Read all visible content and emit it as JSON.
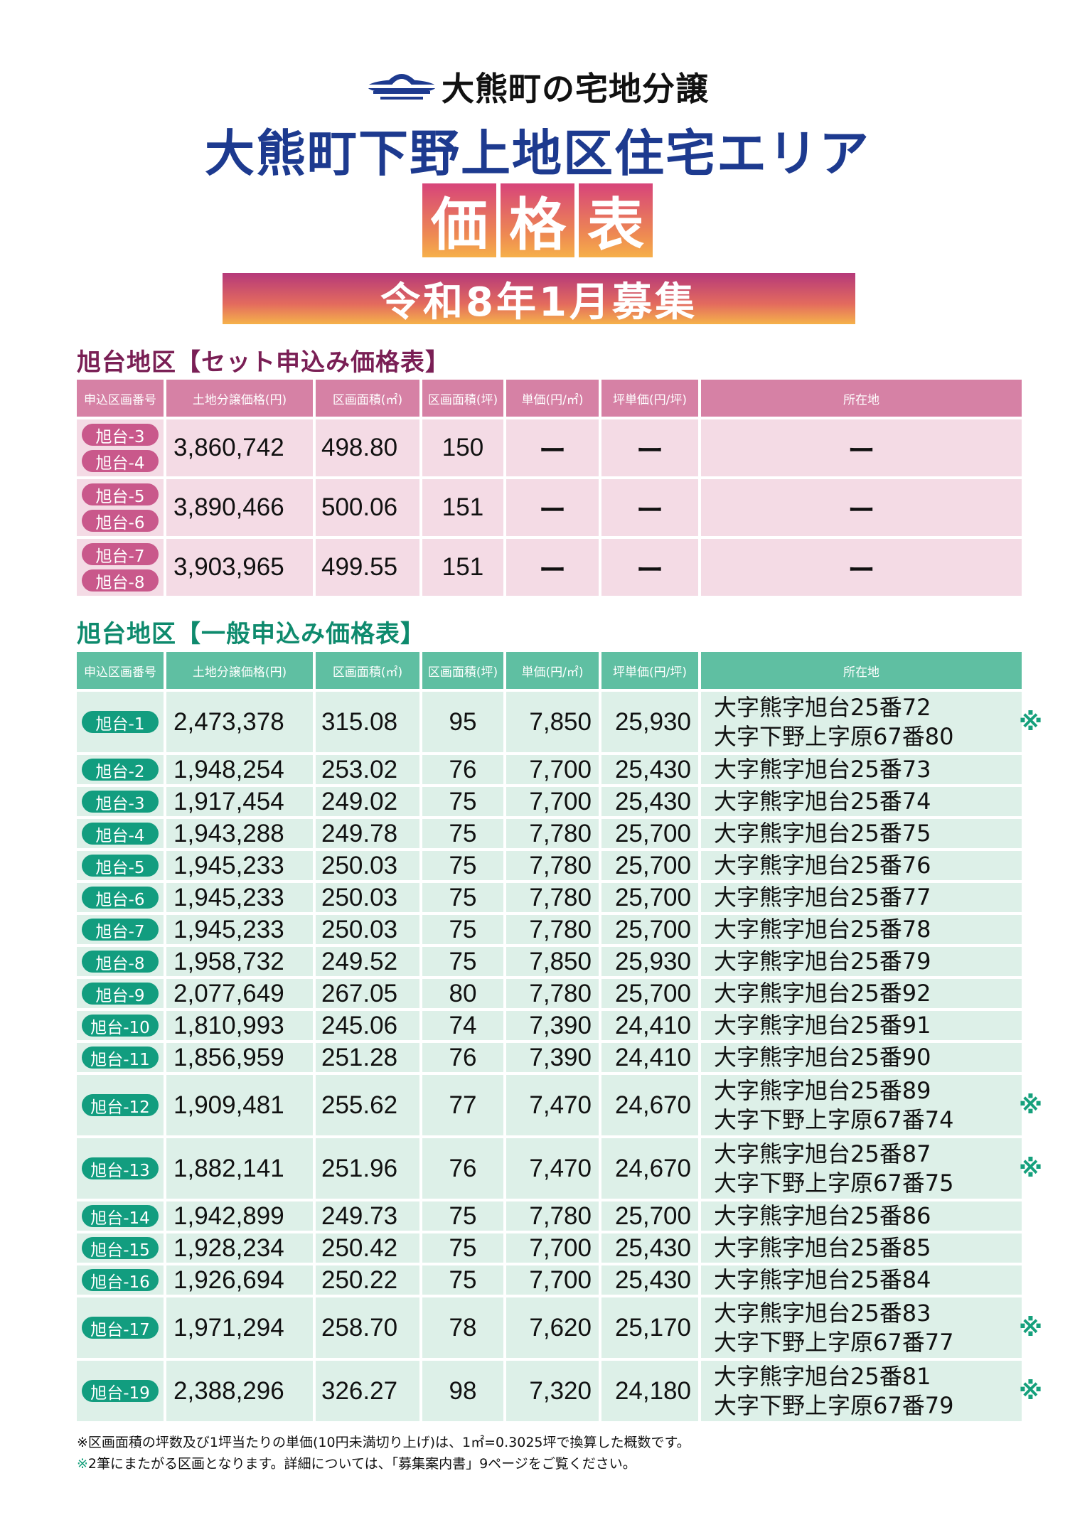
{
  "header": {
    "brand": "大熊町の宅地分譲",
    "main_title": "大熊町下野上地区住宅エリア",
    "price_table_chars": [
      "価",
      "格",
      "表"
    ],
    "period_banner": "令和8年1月募集",
    "colors": {
      "navy": "#1d3a8f",
      "pink": "#d7447a",
      "orange": "#f6b04a",
      "teal": "#129d7f"
    }
  },
  "columns": [
    "申込区画番号",
    "土地分譲価格(円)",
    "区画面積(㎡)",
    "区画面積(坪)",
    "単価(円/㎡)",
    "坪単価(円/坪)",
    "所在地"
  ],
  "set_section": {
    "title": "旭台地区【セット申込み価格表】",
    "rows": [
      {
        "ids": [
          "旭台-3",
          "旭台-4"
        ],
        "price": "3,860,742",
        "area_m2": "498.80",
        "area_tsubo": "150",
        "unit_m2": "ー",
        "unit_tsubo": "ー",
        "location": "ー"
      },
      {
        "ids": [
          "旭台-5",
          "旭台-6"
        ],
        "price": "3,890,466",
        "area_m2": "500.06",
        "area_tsubo": "151",
        "unit_m2": "ー",
        "unit_tsubo": "ー",
        "location": "ー"
      },
      {
        "ids": [
          "旭台-7",
          "旭台-8"
        ],
        "price": "3,903,965",
        "area_m2": "499.55",
        "area_tsubo": "151",
        "unit_m2": "ー",
        "unit_tsubo": "ー",
        "location": "ー"
      }
    ]
  },
  "general_section": {
    "title": "旭台地区【一般申込み価格表】",
    "rows": [
      {
        "id": "旭台-1",
        "price": "2,473,378",
        "area_m2": "315.08",
        "area_tsubo": "95",
        "unit_m2": "7,850",
        "unit_tsubo": "25,930",
        "loc1": "大字熊字旭台25番72",
        "loc2": "大字下野上字原67番80",
        "mark": "※"
      },
      {
        "id": "旭台-2",
        "price": "1,948,254",
        "area_m2": "253.02",
        "area_tsubo": "76",
        "unit_m2": "7,700",
        "unit_tsubo": "25,430",
        "loc1": "大字熊字旭台25番73"
      },
      {
        "id": "旭台-3",
        "price": "1,917,454",
        "area_m2": "249.02",
        "area_tsubo": "75",
        "unit_m2": "7,700",
        "unit_tsubo": "25,430",
        "loc1": "大字熊字旭台25番74"
      },
      {
        "id": "旭台-4",
        "price": "1,943,288",
        "area_m2": "249.78",
        "area_tsubo": "75",
        "unit_m2": "7,780",
        "unit_tsubo": "25,700",
        "loc1": "大字熊字旭台25番75"
      },
      {
        "id": "旭台-5",
        "price": "1,945,233",
        "area_m2": "250.03",
        "area_tsubo": "75",
        "unit_m2": "7,780",
        "unit_tsubo": "25,700",
        "loc1": "大字熊字旭台25番76"
      },
      {
        "id": "旭台-6",
        "price": "1,945,233",
        "area_m2": "250.03",
        "area_tsubo": "75",
        "unit_m2": "7,780",
        "unit_tsubo": "25,700",
        "loc1": "大字熊字旭台25番77"
      },
      {
        "id": "旭台-7",
        "price": "1,945,233",
        "area_m2": "250.03",
        "area_tsubo": "75",
        "unit_m2": "7,780",
        "unit_tsubo": "25,700",
        "loc1": "大字熊字旭台25番78"
      },
      {
        "id": "旭台-8",
        "price": "1,958,732",
        "area_m2": "249.52",
        "area_tsubo": "75",
        "unit_m2": "7,850",
        "unit_tsubo": "25,930",
        "loc1": "大字熊字旭台25番79"
      },
      {
        "id": "旭台-9",
        "price": "2,077,649",
        "area_m2": "267.05",
        "area_tsubo": "80",
        "unit_m2": "7,780",
        "unit_tsubo": "25,700",
        "loc1": "大字熊字旭台25番92"
      },
      {
        "id": "旭台-10",
        "price": "1,810,993",
        "area_m2": "245.06",
        "area_tsubo": "74",
        "unit_m2": "7,390",
        "unit_tsubo": "24,410",
        "loc1": "大字熊字旭台25番91"
      },
      {
        "id": "旭台-11",
        "price": "1,856,959",
        "area_m2": "251.28",
        "area_tsubo": "76",
        "unit_m2": "7,390",
        "unit_tsubo": "24,410",
        "loc1": "大字熊字旭台25番90"
      },
      {
        "id": "旭台-12",
        "price": "1,909,481",
        "area_m2": "255.62",
        "area_tsubo": "77",
        "unit_m2": "7,470",
        "unit_tsubo": "24,670",
        "loc1": "大字熊字旭台25番89",
        "loc2": "大字下野上字原67番74",
        "mark": "※"
      },
      {
        "id": "旭台-13",
        "price": "1,882,141",
        "area_m2": "251.96",
        "area_tsubo": "76",
        "unit_m2": "7,470",
        "unit_tsubo": "24,670",
        "loc1": "大字熊字旭台25番87",
        "loc2": "大字下野上字原67番75",
        "mark": "※"
      },
      {
        "id": "旭台-14",
        "price": "1,942,899",
        "area_m2": "249.73",
        "area_tsubo": "75",
        "unit_m2": "7,780",
        "unit_tsubo": "25,700",
        "loc1": "大字熊字旭台25番86"
      },
      {
        "id": "旭台-15",
        "price": "1,928,234",
        "area_m2": "250.42",
        "area_tsubo": "75",
        "unit_m2": "7,700",
        "unit_tsubo": "25,430",
        "loc1": "大字熊字旭台25番85"
      },
      {
        "id": "旭台-16",
        "price": "1,926,694",
        "area_m2": "250.22",
        "area_tsubo": "75",
        "unit_m2": "7,700",
        "unit_tsubo": "25,430",
        "loc1": "大字熊字旭台25番84"
      },
      {
        "id": "旭台-17",
        "price": "1,971,294",
        "area_m2": "258.70",
        "area_tsubo": "78",
        "unit_m2": "7,620",
        "unit_tsubo": "25,170",
        "loc1": "大字熊字旭台25番83",
        "loc2": "大字下野上字原67番77",
        "mark": "※"
      },
      {
        "id": "旭台-19",
        "price": "2,388,296",
        "area_m2": "326.27",
        "area_tsubo": "98",
        "unit_m2": "7,320",
        "unit_tsubo": "24,180",
        "loc1": "大字熊字旭台25番81",
        "loc2": "大字下野上字原67番79",
        "mark": "※"
      }
    ]
  },
  "notes": [
    "※区画面積の坪数及び1坪当たりの単価(10円未満切り上げ)は、1㎡=0.3025坪で換算した概数です。",
    {
      "mark": "※",
      "text": "2筆にまたがる区画となります。詳細については、「募集案内書」9ページをご覧ください。"
    }
  ]
}
